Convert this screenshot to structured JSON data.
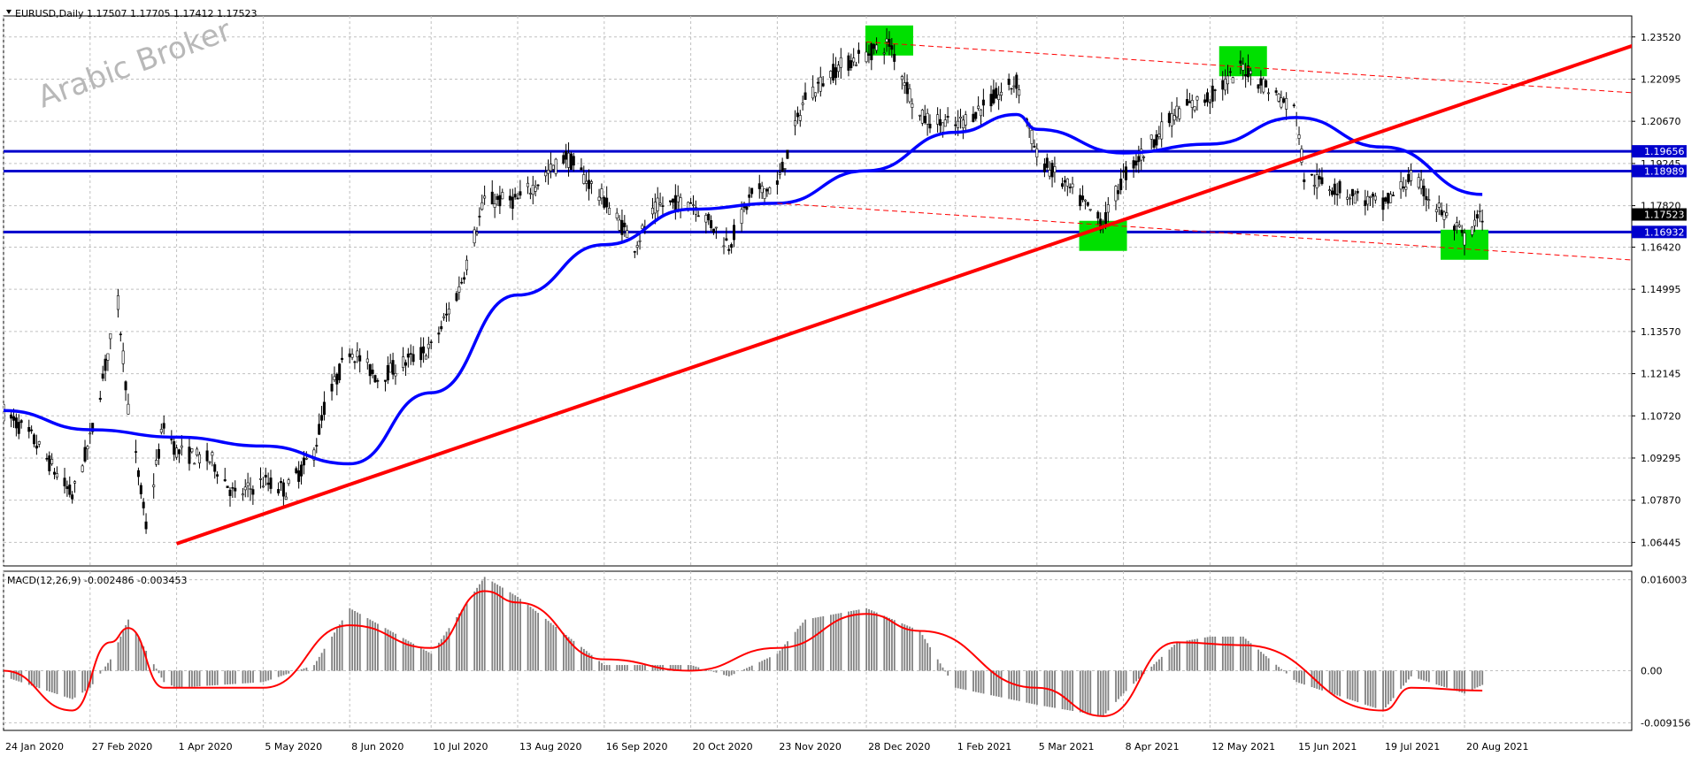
{
  "header": {
    "symbol": "EURUSD,Daily",
    "ohlc": "1.17507 1.17705 1.17412 1.17523"
  },
  "watermark": "Arabic Broker",
  "colors": {
    "candle": "#000000",
    "ma": "#0000ff",
    "trendline": "#ff0000",
    "hline": "#0000cc",
    "highlight": "#00e000",
    "macd_hist": "#808080",
    "macd_signal": "#ff0000",
    "grid": "#c0c0c0"
  },
  "chart_data": [
    {
      "type": "candlestick",
      "title": "EURUSD,Daily",
      "ylim": [
        1.0565,
        1.2423
      ],
      "y_ticks": [
        "1.23520",
        "1.22095",
        "1.20670",
        "1.19245",
        "1.17820",
        "1.16420",
        "1.14995",
        "1.13570",
        "1.12145",
        "1.10720",
        "1.09295",
        "1.07870",
        "1.06445"
      ],
      "x_ticks": [
        "24 Jan 2020",
        "27 Feb 2020",
        "1 Apr 2020",
        "5 May 2020",
        "8 Jun 2020",
        "10 Jul 2020",
        "13 Aug 2020",
        "16 Sep 2020",
        "20 Oct 2020",
        "23 Nov 2020",
        "28 Dec 2020",
        "1 Feb 2021",
        "5 Mar 2021",
        "8 Apr 2021",
        "12 May 2021",
        "15 Jun 2021",
        "19 Jul 2021",
        "20 Aug 2021"
      ],
      "price_path": [
        [
          "24 Jan 2020",
          1.1085
        ],
        [
          "4 Feb 2020",
          1.1
        ],
        [
          "20 Feb 2020",
          1.08
        ],
        [
          "27 Feb 2020",
          1.099
        ],
        [
          "9 Mar 2020",
          1.145
        ],
        [
          "13 Mar 2020",
          1.11
        ],
        [
          "20 Mar 2020",
          1.07
        ],
        [
          "27 Mar 2020",
          1.105
        ],
        [
          "1 Apr 2020",
          1.095
        ],
        [
          "15 Apr 2020",
          1.092
        ],
        [
          "24 Apr 2020",
          1.08
        ],
        [
          "5 May 2020",
          1.085
        ],
        [
          "14 May 2020",
          1.082
        ],
        [
          "25 May 2020",
          1.095
        ],
        [
          "29 May 2020",
          1.11
        ],
        [
          "8 Jun 2020",
          1.13
        ],
        [
          "19 Jun 2020",
          1.12
        ],
        [
          "29 Jun 2020",
          1.125
        ],
        [
          "10 Jul 2020",
          1.13
        ],
        [
          "21 Jul 2020",
          1.15
        ],
        [
          "31 Jul 2020",
          1.18
        ],
        [
          "13 Aug 2020",
          1.18
        ],
        [
          "1 Sep 2020",
          1.195
        ],
        [
          "16 Sep 2020",
          1.18
        ],
        [
          "28 Sep 2020",
          1.165
        ],
        [
          "7 Oct 2020",
          1.178
        ],
        [
          "20 Oct 2020",
          1.18
        ],
        [
          "4 Nov 2020",
          1.165
        ],
        [
          "13 Nov 2020",
          1.182
        ],
        [
          "23 Nov 2020",
          1.185
        ],
        [
          "4 Dec 2020",
          1.215
        ],
        [
          "17 Dec 2020",
          1.225
        ],
        [
          "6 Jan 2021",
          1.233
        ],
        [
          "18 Jan 2021",
          1.208
        ],
        [
          "1 Feb 2021",
          1.205
        ],
        [
          "25 Feb 2021",
          1.22
        ],
        [
          "5 Mar 2021",
          1.195
        ],
        [
          "31 Mar 2021",
          1.172
        ],
        [
          "8 Apr 2021",
          1.188
        ],
        [
          "29 Apr 2021",
          1.21
        ],
        [
          "12 May 2021",
          1.215
        ],
        [
          "25 May 2021",
          1.225
        ],
        [
          "15 Jun 2021",
          1.21
        ],
        [
          "18 Jun 2021",
          1.188
        ],
        [
          "19 Jul 2021",
          1.178
        ],
        [
          "30 Jul 2021",
          1.188
        ],
        [
          "20 Aug 2021",
          1.167
        ],
        [
          "27 Aug 2021",
          1.1752
        ]
      ],
      "moving_average": [
        [
          "24 Jan 2020",
          1.109
        ],
        [
          "27 Feb 2020",
          1.1025
        ],
        [
          "1 Apr 2020",
          1.1
        ],
        [
          "5 May 2020",
          1.097
        ],
        [
          "8 Jun 2020",
          1.091
        ],
        [
          "10 Jul 2020",
          1.115
        ],
        [
          "13 Aug 2020",
          1.148
        ],
        [
          "16 Sep 2020",
          1.165
        ],
        [
          "20 Oct 2020",
          1.177
        ],
        [
          "23 Nov 2020",
          1.179
        ],
        [
          "28 Dec 2020",
          1.19
        ],
        [
          "1 Feb 2021",
          1.203
        ],
        [
          "25 Feb 2021",
          1.209
        ],
        [
          "5 Mar 2021",
          1.204
        ],
        [
          "8 Apr 2021",
          1.196
        ],
        [
          "12 May 2021",
          1.199
        ],
        [
          "15 Jun 2021",
          1.208
        ],
        [
          "19 Jul 2021",
          1.198
        ],
        [
          "27 Aug 2021",
          1.182
        ]
      ],
      "trendlines": [
        {
          "style": "solid",
          "points": [
            [
              "1 Apr 2020",
              1.064
            ],
            [
              "31 Oct 2021",
              1.234
            ]
          ]
        },
        {
          "style": "dashed",
          "points": [
            [
              "28 Dec 2020",
              1.2335
            ],
            [
              "31 Oct 2021",
              1.216
            ]
          ]
        },
        {
          "style": "dashed",
          "points": [
            [
              "23 Nov 2020",
              1.179
            ],
            [
              "31 Oct 2021",
              1.1595
            ]
          ]
        }
      ],
      "horizontal_levels": [
        "1.19656",
        "1.18989",
        "1.16932"
      ],
      "current_price": "1.17523",
      "highlights": [
        {
          "date": "6 Jan 2021",
          "price": 1.234
        },
        {
          "date": "31 Mar 2021",
          "price": 1.168
        },
        {
          "date": "25 May 2021",
          "price": 1.227
        },
        {
          "date": "20 Aug 2021",
          "price": 1.165
        }
      ]
    },
    {
      "type": "bar",
      "title": "MACD(12,26,9) -0.002486 -0.003453",
      "ylim": [
        -0.0105,
        0.0175
      ],
      "y_ticks": [
        "0.016003",
        "0.00",
        "-0.009156"
      ],
      "macd_path": [
        [
          "24 Jan 2020",
          -0.001
        ],
        [
          "20 Feb 2020",
          -0.005
        ],
        [
          "27 Feb 2020",
          -0.003
        ],
        [
          "6 Mar 2020",
          0.002
        ],
        [
          "13 Mar 2020",
          0.009
        ],
        [
          "27 Mar 2020",
          -0.002
        ],
        [
          "1 Apr 2020",
          -0.003
        ],
        [
          "5 May 2020",
          -0.002
        ],
        [
          "25 May 2020",
          0.001
        ],
        [
          "8 Jun 2020",
          0.011
        ],
        [
          "10 Jul 2020",
          0.003
        ],
        [
          "31 Jul 2020",
          0.0165
        ],
        [
          "13 Aug 2020",
          0.013
        ],
        [
          "16 Sep 2020",
          0.001
        ],
        [
          "20 Oct 2020",
          0.001
        ],
        [
          "4 Nov 2020",
          -0.001
        ],
        [
          "23 Nov 2020",
          0.003
        ],
        [
          "4 Dec 2020",
          0.009
        ],
        [
          "28 Dec 2020",
          0.011
        ],
        [
          "18 Jan 2021",
          0.007
        ],
        [
          "1 Feb 2021",
          -0.003
        ],
        [
          "5 Mar 2021",
          -0.006
        ],
        [
          "31 Mar 2021",
          -0.008
        ],
        [
          "8 Apr 2021",
          -0.004
        ],
        [
          "29 Apr 2021",
          0.005
        ],
        [
          "12 May 2021",
          0.006
        ],
        [
          "25 May 2021",
          0.006
        ],
        [
          "15 Jun 2021",
          -0.002
        ],
        [
          "19 Jul 2021",
          -0.007
        ],
        [
          "30 Jul 2021",
          -0.001
        ],
        [
          "20 Aug 2021",
          -0.004
        ],
        [
          "27 Aug 2021",
          -0.0025
        ]
      ],
      "signal_path": [
        [
          "24 Jan 2020",
          0.0
        ],
        [
          "20 Feb 2020",
          -0.007
        ],
        [
          "6 Mar 2020",
          0.005
        ],
        [
          "13 Mar 2020",
          0.0075
        ],
        [
          "27 Mar 2020",
          -0.003
        ],
        [
          "5 May 2020",
          -0.003
        ],
        [
          "8 Jun 2020",
          0.008
        ],
        [
          "10 Jul 2020",
          0.004
        ],
        [
          "31 Jul 2020",
          0.014
        ],
        [
          "13 Aug 2020",
          0.012
        ],
        [
          "16 Sep 2020",
          0.002
        ],
        [
          "20 Oct 2020",
          0.0
        ],
        [
          "23 Nov 2020",
          0.004
        ],
        [
          "28 Dec 2020",
          0.01
        ],
        [
          "18 Jan 2021",
          0.007
        ],
        [
          "5 Mar 2021",
          -0.003
        ],
        [
          "31 Mar 2021",
          -0.008
        ],
        [
          "29 Apr 2021",
          0.005
        ],
        [
          "25 May 2021",
          0.0045
        ],
        [
          "19 Jul 2021",
          -0.007
        ],
        [
          "30 Jul 2021",
          -0.003
        ],
        [
          "27 Aug 2021",
          -0.0035
        ]
      ]
    }
  ]
}
